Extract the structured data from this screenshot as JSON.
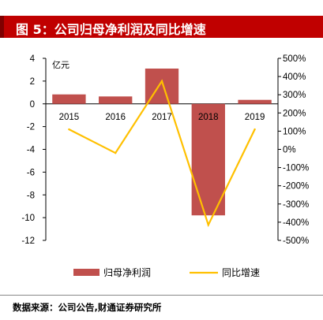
{
  "figure": {
    "title": "图 5：公司归母净利润及同比增速",
    "source": "数据来源：公司公告,财通证券研究所"
  },
  "chart_data": {
    "type": "bar+line",
    "categories": [
      "2015",
      "2016",
      "2017",
      "2018",
      "2019"
    ],
    "series": [
      {
        "name": "归母净利润",
        "type": "bar",
        "axis": "left",
        "values": [
          0.83,
          0.65,
          3.1,
          -9.8,
          0.35
        ],
        "color": "#c0504d"
      },
      {
        "name": "同比增速",
        "type": "line",
        "axis": "right",
        "values": [
          110,
          -20,
          375,
          -415,
          110
        ],
        "color": "#ffc000"
      }
    ],
    "ylabel": "亿元",
    "ylim": [
      -12,
      4
    ],
    "yticks": [
      "-12",
      "-10",
      "-8",
      "-6",
      "-4",
      "-2",
      "0",
      "2",
      "4"
    ],
    "y2lim": [
      -500,
      500
    ],
    "y2ticks": [
      "-500%",
      "-400%",
      "-300%",
      "-200%",
      "-100%",
      "0%",
      "100%",
      "200%",
      "300%",
      "400%",
      "500%"
    ],
    "grid": false,
    "legend_position": "bottom"
  }
}
